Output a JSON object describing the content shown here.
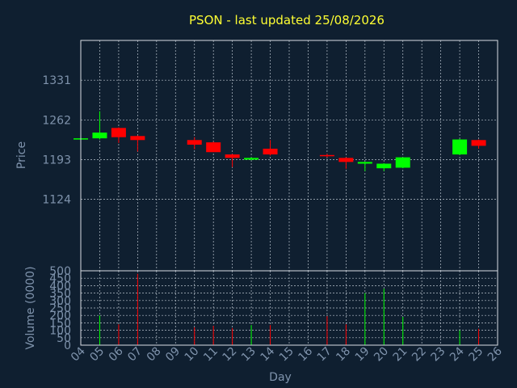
{
  "chart_data": {
    "type": "candlestick",
    "title": "PSON - last updated 25/08/2026",
    "price_axis": {
      "label": "Price",
      "ticks": [
        1124,
        1193,
        1262,
        1331
      ],
      "range": [
        1000,
        1400
      ]
    },
    "volume_axis": {
      "label": "Volume (0000)",
      "ticks": [
        0,
        50,
        100,
        150,
        200,
        250,
        300,
        350,
        400,
        450,
        500
      ],
      "range": [
        0,
        500
      ]
    },
    "x_axis": {
      "label": "Day",
      "ticks": [
        "04",
        "05",
        "06",
        "07",
        "08",
        "09",
        "10",
        "11",
        "12",
        "13",
        "14",
        "15",
        "16",
        "17",
        "18",
        "19",
        "20",
        "21",
        "22",
        "23",
        "24",
        "25",
        "26"
      ]
    },
    "grid": true,
    "colors": {
      "up": "#00ff00",
      "down": "#ff0000"
    },
    "candles": [
      {
        "day": "04",
        "open": 1230,
        "high": 1231,
        "low": 1229,
        "close": 1230,
        "volume": 0
      },
      {
        "day": "05",
        "open": 1230,
        "high": 1277,
        "low": 1228,
        "close": 1240,
        "volume": 200
      },
      {
        "day": "06",
        "open": 1248,
        "high": 1249,
        "low": 1222,
        "close": 1232,
        "volume": 140
      },
      {
        "day": "07",
        "open": 1234,
        "high": 1235,
        "low": 1207,
        "close": 1227,
        "volume": 480
      },
      {
        "day": "10",
        "open": 1227,
        "high": 1232,
        "low": 1211,
        "close": 1219,
        "volume": 120
      },
      {
        "day": "11",
        "open": 1223,
        "high": 1224,
        "low": 1206,
        "close": 1206,
        "volume": 130
      },
      {
        "day": "12",
        "open": 1202,
        "high": 1203,
        "low": 1180,
        "close": 1196,
        "volume": 115
      },
      {
        "day": "13",
        "open": 1193,
        "high": 1197,
        "low": 1192,
        "close": 1196,
        "volume": 135
      },
      {
        "day": "14",
        "open": 1212,
        "high": 1227,
        "low": 1200,
        "close": 1202,
        "volume": 135
      },
      {
        "day": "17",
        "open": 1201,
        "high": 1203,
        "low": 1197,
        "close": 1199,
        "volume": 195
      },
      {
        "day": "18",
        "open": 1196,
        "high": 1197,
        "low": 1177,
        "close": 1189,
        "volume": 140
      },
      {
        "day": "19",
        "open": 1186,
        "high": 1189,
        "low": 1173,
        "close": 1189,
        "volume": 350
      },
      {
        "day": "20",
        "open": 1178,
        "high": 1187,
        "low": 1173,
        "close": 1186,
        "volume": 380
      },
      {
        "day": "21",
        "open": 1179,
        "high": 1197,
        "low": 1178,
        "close": 1197,
        "volume": 190
      },
      {
        "day": "24",
        "open": 1202,
        "high": 1229,
        "low": 1201,
        "close": 1228,
        "volume": 100
      },
      {
        "day": "25",
        "open": 1227,
        "high": 1228,
        "low": 1212,
        "close": 1217,
        "volume": 110
      }
    ]
  }
}
